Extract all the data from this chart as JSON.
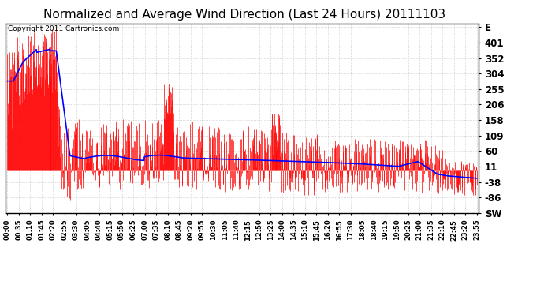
{
  "title": "Normalized and Average Wind Direction (Last 24 Hours) 20111103",
  "copyright": "Copyright 2011 Cartronics.com",
  "y_tick_labels": [
    "SW",
    "-86",
    "-38",
    "11",
    "60",
    "109",
    "158",
    "206",
    "255",
    "304",
    "352",
    "401",
    "E"
  ],
  "y_tick_values": [
    -135,
    -86,
    -38,
    11,
    60,
    109,
    158,
    206,
    255,
    304,
    352,
    401,
    450
  ],
  "ylim": [
    -135,
    460
  ],
  "background_color": "#ffffff",
  "plot_bg_color": "#ffffff",
  "grid_color": "#bbbbbb",
  "bar_color": "#ff0000",
  "line_color": "#0000ff",
  "title_fontsize": 11,
  "copyright_fontsize": 6.5,
  "tick_label_fontsize": 8.5,
  "x_tick_fontsize": 6,
  "x_labels": [
    "00:00",
    "00:35",
    "01:10",
    "01:45",
    "02:20",
    "02:55",
    "03:30",
    "04:05",
    "04:40",
    "05:15",
    "05:50",
    "06:25",
    "07:00",
    "07:35",
    "08:10",
    "08:45",
    "09:20",
    "09:55",
    "10:30",
    "11:05",
    "11:40",
    "12:15",
    "12:50",
    "13:25",
    "14:00",
    "14:35",
    "15:10",
    "15:45",
    "16:20",
    "16:55",
    "17:30",
    "18:05",
    "18:40",
    "19:15",
    "19:50",
    "20:25",
    "21:00",
    "21:35",
    "22:10",
    "22:45",
    "23:20",
    "23:55"
  ]
}
